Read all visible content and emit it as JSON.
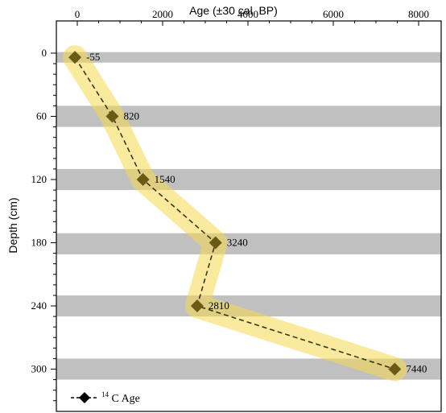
{
  "chart_data": {
    "type": "line",
    "title": "",
    "xlabel": "Age",
    "xlabel_unit": "(±30 cal. BP)",
    "ylabel": "Depth (cm)",
    "x_axis_position": "top",
    "y_inverted": true,
    "xlim": [
      -300,
      8500
    ],
    "ylim": [
      -7,
      320
    ],
    "x_ticks": [
      0,
      2000,
      4000,
      6000,
      8000
    ],
    "y_ticks": [
      0,
      60,
      120,
      180,
      240,
      300
    ],
    "series": [
      {
        "name": "C Age",
        "name_superscript": "14",
        "marker": "diamond",
        "line_style": "dashed",
        "color": "#6b5a14",
        "band_color": "#f6d94c",
        "points": [
          {
            "depth": 4,
            "age": -55,
            "label": "-55"
          },
          {
            "depth": 60,
            "age": 820,
            "label": "820"
          },
          {
            "depth": 120,
            "age": 1540,
            "label": "1540"
          },
          {
            "depth": 180,
            "age": 3240,
            "label": "3240"
          },
          {
            "depth": 240,
            "age": 2810,
            "label": "2810"
          },
          {
            "depth": 300,
            "age": 7440,
            "label": "7440"
          }
        ]
      }
    ],
    "sample_bands": [
      {
        "from": -1,
        "to": 9
      },
      {
        "from": 50,
        "to": 70
      },
      {
        "from": 110,
        "to": 130
      },
      {
        "from": 171,
        "to": 191
      },
      {
        "from": 230,
        "to": 250
      },
      {
        "from": 290,
        "to": 310
      }
    ],
    "band_color": "#c0c0c0",
    "grid": false,
    "legend_position": "bottom-left"
  }
}
